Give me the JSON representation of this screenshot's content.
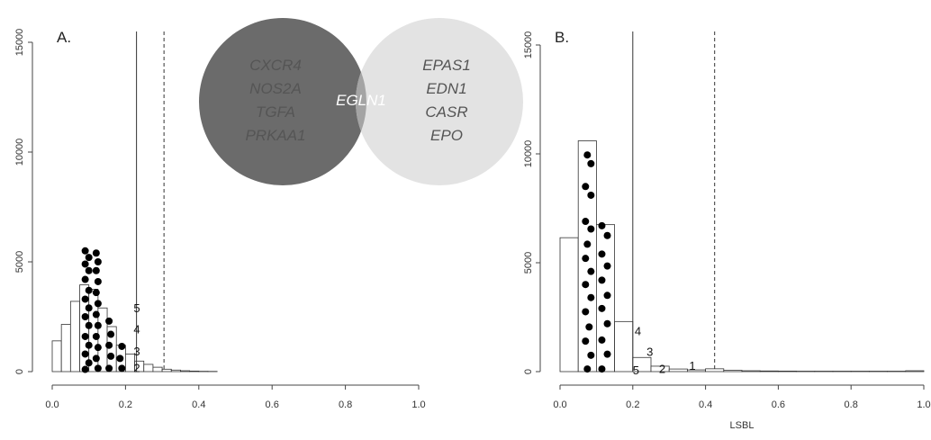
{
  "chart_data": [
    {
      "type": "histogram",
      "panel_label": "A.",
      "xlabel": "",
      "xlim": [
        0,
        1
      ],
      "ylim": [
        0,
        15000
      ],
      "xticks": [
        "0.0",
        "0.2",
        "0.4",
        "0.6",
        "0.8",
        "1.0"
      ],
      "yticks": [
        "0",
        "5000",
        "10000",
        "15000"
      ],
      "bin_width": 0.025,
      "bins": [
        {
          "x0": 0.0,
          "count": 1400
        },
        {
          "x0": 0.025,
          "count": 2150
        },
        {
          "x0": 0.05,
          "count": 3200
        },
        {
          "x0": 0.075,
          "count": 3950
        },
        {
          "x0": 0.1,
          "count": 3750
        },
        {
          "x0": 0.125,
          "count": 2900
        },
        {
          "x0": 0.15,
          "count": 2050
        },
        {
          "x0": 0.175,
          "count": 1200
        },
        {
          "x0": 0.2,
          "count": 800
        },
        {
          "x0": 0.225,
          "count": 480
        },
        {
          "x0": 0.25,
          "count": 330
        },
        {
          "x0": 0.275,
          "count": 200
        },
        {
          "x0": 0.3,
          "count": 110
        },
        {
          "x0": 0.325,
          "count": 70
        },
        {
          "x0": 0.35,
          "count": 40
        },
        {
          "x0": 0.375,
          "count": 25
        },
        {
          "x0": 0.4,
          "count": 15
        },
        {
          "x0": 0.425,
          "count": 10
        }
      ],
      "points": [
        {
          "x": 0.09,
          "y": 5500
        },
        {
          "x": 0.1,
          "y": 5200
        },
        {
          "x": 0.09,
          "y": 4900
        },
        {
          "x": 0.1,
          "y": 4600
        },
        {
          "x": 0.09,
          "y": 4200
        },
        {
          "x": 0.1,
          "y": 3700
        },
        {
          "x": 0.09,
          "y": 3300
        },
        {
          "x": 0.1,
          "y": 2900
        },
        {
          "x": 0.09,
          "y": 2500
        },
        {
          "x": 0.1,
          "y": 2100
        },
        {
          "x": 0.09,
          "y": 1600
        },
        {
          "x": 0.1,
          "y": 1200
        },
        {
          "x": 0.09,
          "y": 800
        },
        {
          "x": 0.1,
          "y": 400
        },
        {
          "x": 0.09,
          "y": 100
        },
        {
          "x": 0.12,
          "y": 5400
        },
        {
          "x": 0.125,
          "y": 5000
        },
        {
          "x": 0.12,
          "y": 4600
        },
        {
          "x": 0.125,
          "y": 4100
        },
        {
          "x": 0.12,
          "y": 3600
        },
        {
          "x": 0.125,
          "y": 3100
        },
        {
          "x": 0.12,
          "y": 2600
        },
        {
          "x": 0.125,
          "y": 2100
        },
        {
          "x": 0.12,
          "y": 1600
        },
        {
          "x": 0.125,
          "y": 1100
        },
        {
          "x": 0.12,
          "y": 600
        },
        {
          "x": 0.125,
          "y": 150
        },
        {
          "x": 0.155,
          "y": 2300
        },
        {
          "x": 0.16,
          "y": 1700
        },
        {
          "x": 0.155,
          "y": 1200
        },
        {
          "x": 0.16,
          "y": 700
        },
        {
          "x": 0.155,
          "y": 150
        },
        {
          "x": 0.19,
          "y": 1150
        },
        {
          "x": 0.185,
          "y": 600
        },
        {
          "x": 0.19,
          "y": 150
        }
      ],
      "vlines": [
        {
          "x": 0.23,
          "style": "solid"
        },
        {
          "x": 0.305,
          "style": "dashed"
        }
      ],
      "annotations": [
        {
          "text": "5",
          "x": 0.222,
          "y": 2900
        },
        {
          "text": "4",
          "x": 0.222,
          "y": 1950
        },
        {
          "text": "3",
          "x": 0.222,
          "y": 950
        },
        {
          "text": "2",
          "x": 0.222,
          "y": 190
        }
      ]
    },
    {
      "type": "histogram",
      "panel_label": "B.",
      "xlabel": "LSBL",
      "xlim": [
        0,
        1
      ],
      "ylim": [
        0,
        15000
      ],
      "xticks": [
        "0.0",
        "0.2",
        "0.4",
        "0.6",
        "0.8",
        "1.0"
      ],
      "yticks": [
        "0",
        "5000",
        "10000",
        "15000"
      ],
      "bin_width": 0.05,
      "bins": [
        {
          "x0": 0.0,
          "count": 6150
        },
        {
          "x0": 0.05,
          "count": 10600
        },
        {
          "x0": 0.1,
          "count": 6750
        },
        {
          "x0": 0.15,
          "count": 2300
        },
        {
          "x0": 0.2,
          "count": 650
        },
        {
          "x0": 0.25,
          "count": 250
        },
        {
          "x0": 0.3,
          "count": 120
        },
        {
          "x0": 0.35,
          "count": 80
        },
        {
          "x0": 0.4,
          "count": 130
        },
        {
          "x0": 0.45,
          "count": 60
        },
        {
          "x0": 0.5,
          "count": 40
        },
        {
          "x0": 0.55,
          "count": 30
        },
        {
          "x0": 0.6,
          "count": 25
        },
        {
          "x0": 0.65,
          "count": 20
        },
        {
          "x0": 0.7,
          "count": 20
        },
        {
          "x0": 0.75,
          "count": 20
        },
        {
          "x0": 0.8,
          "count": 20
        },
        {
          "x0": 0.85,
          "count": 20
        },
        {
          "x0": 0.9,
          "count": 20
        },
        {
          "x0": 0.95,
          "count": 40
        }
      ],
      "points": [
        {
          "x": 0.075,
          "y": 9950
        },
        {
          "x": 0.085,
          "y": 9550
        },
        {
          "x": 0.07,
          "y": 8500
        },
        {
          "x": 0.085,
          "y": 8100
        },
        {
          "x": 0.07,
          "y": 6900
        },
        {
          "x": 0.085,
          "y": 6550
        },
        {
          "x": 0.075,
          "y": 5850
        },
        {
          "x": 0.07,
          "y": 5200
        },
        {
          "x": 0.085,
          "y": 4600
        },
        {
          "x": 0.07,
          "y": 4000
        },
        {
          "x": 0.085,
          "y": 3400
        },
        {
          "x": 0.07,
          "y": 2750
        },
        {
          "x": 0.08,
          "y": 2050
        },
        {
          "x": 0.07,
          "y": 1400
        },
        {
          "x": 0.085,
          "y": 750
        },
        {
          "x": 0.075,
          "y": 120
        },
        {
          "x": 0.115,
          "y": 6700
        },
        {
          "x": 0.13,
          "y": 6250
        },
        {
          "x": 0.115,
          "y": 5400
        },
        {
          "x": 0.13,
          "y": 4850
        },
        {
          "x": 0.115,
          "y": 4200
        },
        {
          "x": 0.13,
          "y": 3500
        },
        {
          "x": 0.115,
          "y": 2900
        },
        {
          "x": 0.13,
          "y": 2200
        },
        {
          "x": 0.115,
          "y": 1450
        },
        {
          "x": 0.13,
          "y": 800
        },
        {
          "x": 0.115,
          "y": 120
        }
      ],
      "vlines": [
        {
          "x": 0.2,
          "style": "solid"
        },
        {
          "x": 0.425,
          "style": "dashed"
        }
      ],
      "annotations": [
        {
          "text": "4",
          "x": 0.205,
          "y": 1880
        },
        {
          "text": "3",
          "x": 0.238,
          "y": 930
        },
        {
          "text": "5",
          "x": 0.2,
          "y": 90
        },
        {
          "text": "2",
          "x": 0.272,
          "y": 150
        },
        {
          "text": "1",
          "x": 0.355,
          "y": 280
        }
      ]
    }
  ],
  "venn": {
    "left_genes": [
      "CXCR4",
      "NOS2A",
      "TGFA",
      "PRKAA1"
    ],
    "shared_genes": [
      "EGLN1"
    ],
    "right_genes": [
      "EPAS1",
      "EDN1",
      "CASR",
      "EPO"
    ],
    "left_color": "#6b6b6b",
    "right_color": "#e3e3e3",
    "overlap_color": "#a4a4a4"
  }
}
